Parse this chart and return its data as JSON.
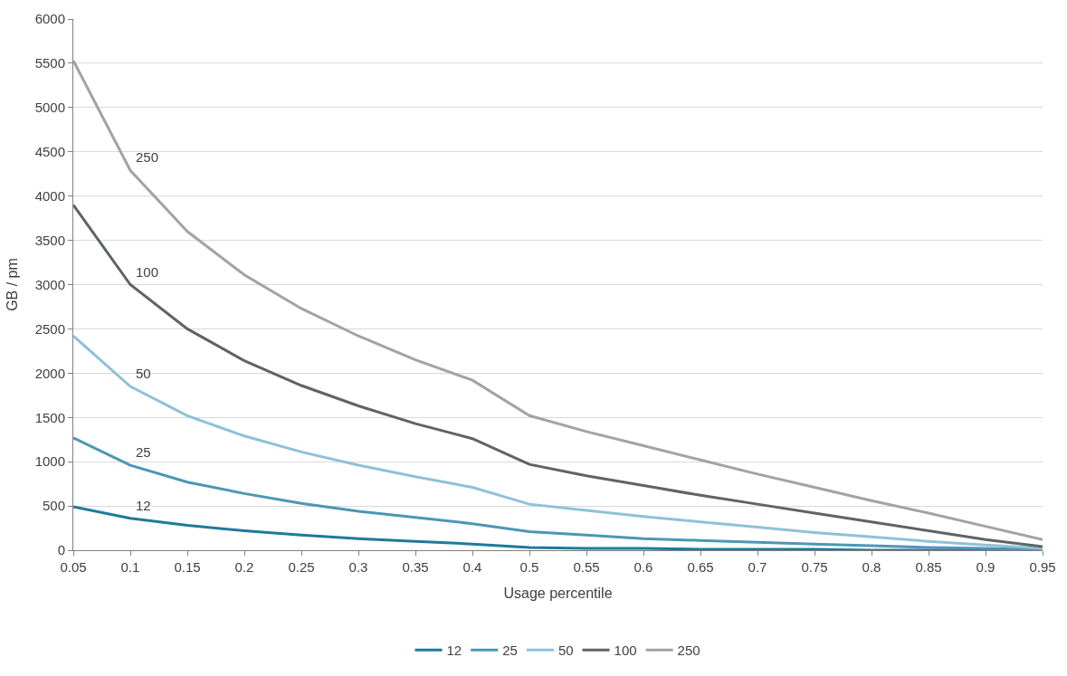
{
  "chart_data": {
    "type": "line",
    "xlabel": "Usage percentile",
    "ylabel": "GB / pm",
    "categories": [
      "0.05",
      "0.1",
      "0.15",
      "0.2",
      "0.25",
      "0.3",
      "0.35",
      "0.4",
      "0.5",
      "0.55",
      "0.6",
      "0.65",
      "0.7",
      "0.75",
      "0.8",
      "0.85",
      "0.9",
      "0.95"
    ],
    "series": [
      {
        "name": "12",
        "color": "#1f7a9a",
        "values": [
          490,
          360,
          280,
          220,
          170,
          130,
          100,
          70,
          30,
          20,
          20,
          10,
          10,
          10,
          0,
          0,
          0,
          0
        ]
      },
      {
        "name": "25",
        "color": "#4d96b5",
        "values": [
          1270,
          960,
          770,
          640,
          530,
          440,
          370,
          300,
          210,
          170,
          130,
          110,
          90,
          70,
          50,
          30,
          20,
          10
        ]
      },
      {
        "name": "50",
        "color": "#8fc1d8",
        "values": [
          2420,
          1850,
          1520,
          1290,
          1110,
          960,
          830,
          710,
          520,
          450,
          380,
          320,
          260,
          200,
          150,
          100,
          60,
          20
        ]
      },
      {
        "name": "100",
        "color": "#5f6368",
        "values": [
          3900,
          3000,
          2500,
          2140,
          1860,
          1630,
          1430,
          1260,
          970,
          840,
          730,
          620,
          520,
          420,
          320,
          220,
          120,
          40
        ]
      },
      {
        "name": "250",
        "color": "#a0a3a7",
        "values": [
          5530,
          4290,
          3600,
          3110,
          2730,
          2420,
          2150,
          1920,
          1520,
          1340,
          1180,
          1020,
          860,
          710,
          560,
          420,
          270,
          120
        ]
      }
    ],
    "annotations": [
      {
        "text": "250",
        "x": "0.1",
        "y": 4290
      },
      {
        "text": "100",
        "x": "0.1",
        "y": 3000
      },
      {
        "text": "50",
        "x": "0.1",
        "y": 1850
      },
      {
        "text": "25",
        "x": "0.1",
        "y": 960
      },
      {
        "text": "12",
        "x": "0.1",
        "y": 360
      }
    ],
    "ylim": [
      0,
      6000
    ],
    "yticks": [
      0,
      500,
      1000,
      1500,
      2000,
      2500,
      3000,
      3500,
      4000,
      4500,
      5000,
      5500,
      6000
    ],
    "grid": "y",
    "legend": "bottom",
    "marker": "none",
    "line_style": "solid"
  }
}
